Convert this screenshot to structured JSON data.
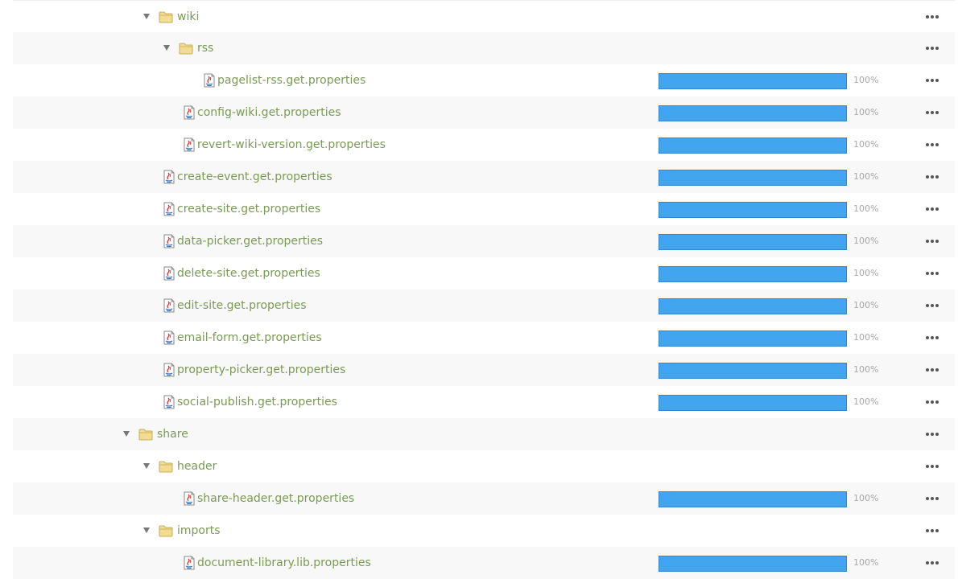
{
  "rows": [
    {
      "type": "folder",
      "name": "wiki",
      "depth": 2,
      "expanded": true
    },
    {
      "type": "folder",
      "name": "rss",
      "depth": 3,
      "expanded": true
    },
    {
      "type": "file",
      "name": "pagelist-rss.get.properties",
      "depth": 4,
      "progress": 100,
      "progress_label": "100%"
    },
    {
      "type": "file",
      "name": "config-wiki.get.properties",
      "depth": 3,
      "progress": 100,
      "progress_label": "100%"
    },
    {
      "type": "file",
      "name": "revert-wiki-version.get.properties",
      "depth": 3,
      "progress": 100,
      "progress_label": "100%"
    },
    {
      "type": "file",
      "name": "create-event.get.properties",
      "depth": 2,
      "progress": 100,
      "progress_label": "100%"
    },
    {
      "type": "file",
      "name": "create-site.get.properties",
      "depth": 2,
      "progress": 100,
      "progress_label": "100%"
    },
    {
      "type": "file",
      "name": "data-picker.get.properties",
      "depth": 2,
      "progress": 100,
      "progress_label": "100%"
    },
    {
      "type": "file",
      "name": "delete-site.get.properties",
      "depth": 2,
      "progress": 100,
      "progress_label": "100%"
    },
    {
      "type": "file",
      "name": "edit-site.get.properties",
      "depth": 2,
      "progress": 100,
      "progress_label": "100%"
    },
    {
      "type": "file",
      "name": "email-form.get.properties",
      "depth": 2,
      "progress": 100,
      "progress_label": "100%"
    },
    {
      "type": "file",
      "name": "property-picker.get.properties",
      "depth": 2,
      "progress": 100,
      "progress_label": "100%"
    },
    {
      "type": "file",
      "name": "social-publish.get.properties",
      "depth": 2,
      "progress": 100,
      "progress_label": "100%"
    },
    {
      "type": "folder",
      "name": "share",
      "depth": 1,
      "expanded": true
    },
    {
      "type": "folder",
      "name": "header",
      "depth": 2,
      "expanded": true
    },
    {
      "type": "file",
      "name": "share-header.get.properties",
      "depth": 3,
      "progress": 100,
      "progress_label": "100%"
    },
    {
      "type": "folder",
      "name": "imports",
      "depth": 2,
      "expanded": true
    },
    {
      "type": "file",
      "name": "document-library.lib.properties",
      "depth": 3,
      "progress": 100,
      "progress_label": "100%"
    }
  ],
  "colors": {
    "link": "#7a9a55",
    "progress": "#42a5ef",
    "progress_border": "#2f86d2",
    "row_alt": "#f8f8f8",
    "folder": "#f2dc8f"
  },
  "icons": {
    "folder": "folder-icon",
    "file": "java-properties-file-icon",
    "toggle": "triangle-down-icon",
    "menu": "more-actions-icon"
  }
}
